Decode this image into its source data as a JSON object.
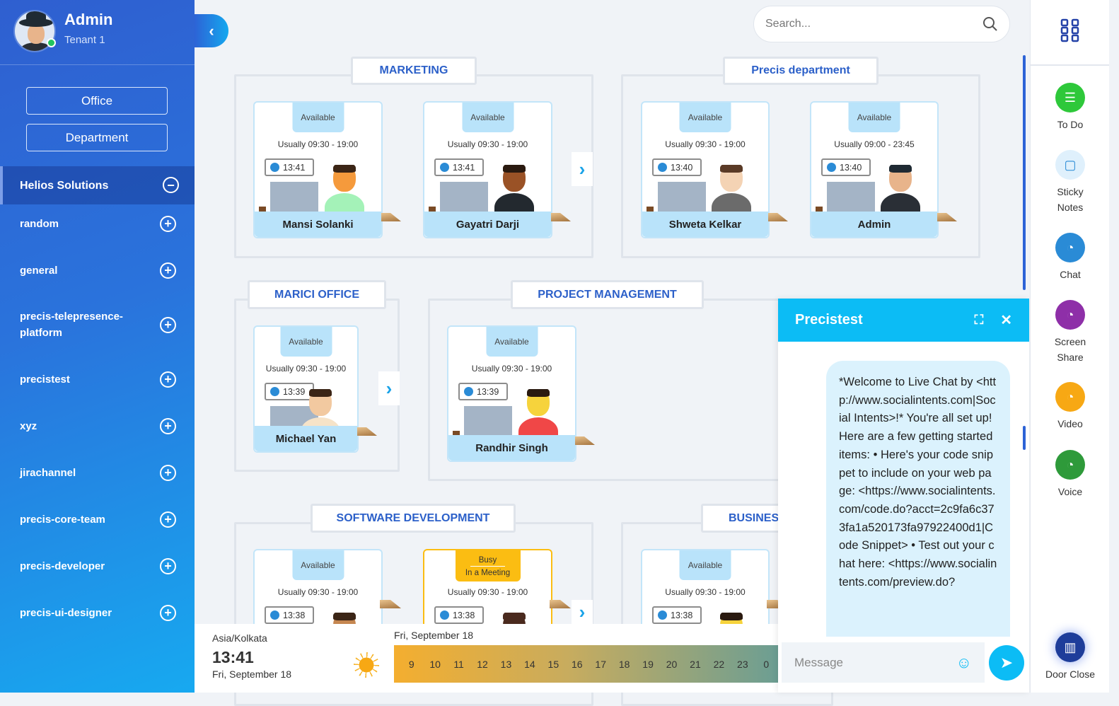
{
  "user": {
    "name": "Admin",
    "tenant": "Tenant 1",
    "status_color": "#22c55e"
  },
  "sidebar": {
    "office_label": "Office",
    "department_label": "Department",
    "active_item": "Helios Solutions",
    "items": [
      {
        "label": "random"
      },
      {
        "label": "general"
      },
      {
        "label": "precis-telepresence-platform"
      },
      {
        "label": "precistest"
      },
      {
        "label": "xyz"
      },
      {
        "label": "jirachannel"
      },
      {
        "label": "precis-core-team"
      },
      {
        "label": "precis-developer"
      },
      {
        "label": "precis-ui-designer"
      }
    ]
  },
  "search": {
    "placeholder": "Search..."
  },
  "groups": [
    {
      "title": "MARKETING",
      "members": [
        {
          "name": "Mansi Solanki",
          "status": "Available",
          "hours": "Usually 09:30 - 19:00",
          "time": "13:41",
          "skin": "#f59a3c",
          "hair": "#3b2516",
          "shirt": "#a4f2b8"
        },
        {
          "name": "Gayatri Darji",
          "status": "Available",
          "hours": "Usually 09:30 - 19:00",
          "time": "13:41",
          "skin": "#9a5226",
          "hair": "#2a1a10",
          "shirt": "#23292f"
        }
      ]
    },
    {
      "title": "Precis department",
      "members": [
        {
          "name": "Shweta Kelkar",
          "status": "Available",
          "hours": "Usually 09:30 - 19:00",
          "time": "13:40",
          "skin": "#f4d3b4",
          "hair": "#5a3a26",
          "shirt": "#6b6b6b"
        },
        {
          "name": "Admin",
          "status": "Available",
          "hours": "Usually 09:00 - 23:45",
          "time": "13:40",
          "skin": "#e8b48b",
          "hair": "#1f2a33",
          "shirt": "#2a2f36"
        }
      ]
    },
    {
      "title": "MARICI OFFICE",
      "members": [
        {
          "name": "Michael Yan",
          "status": "Available",
          "hours": "Usually 09:30 - 19:00",
          "time": "13:39",
          "skin": "#f2c9a0",
          "hair": "#3b2516",
          "shirt": "#f6e3c8"
        }
      ]
    },
    {
      "title": "PROJECT MANAGEMENT",
      "members": [
        {
          "name": "Randhir Singh",
          "status": "Available",
          "hours": "Usually 09:30 - 19:00",
          "time": "13:39",
          "skin": "#f6d33c",
          "hair": "#2a1a10",
          "shirt": "#f04747"
        }
      ]
    },
    {
      "title": "SOFTWARE DEVELOPMENT",
      "members": [
        {
          "name": "",
          "status": "Available",
          "hours": "Usually 09:30 - 19:00",
          "time": "13:38",
          "skin": "#c58650",
          "hair": "#3b2516",
          "shirt": "#888"
        },
        {
          "name": "",
          "status": "Busy",
          "substatus": "In a Meeting",
          "hours": "Usually 09:30 - 19:00",
          "time": "13:38",
          "skin": "#4a2a1e",
          "hair": "#4a2a1e",
          "shirt": "#888"
        }
      ]
    },
    {
      "title": "BUSINES",
      "members": [
        {
          "name": "",
          "status": "Available",
          "hours": "Usually 09:30 - 19:00",
          "time": "13:38",
          "skin": "#f6d33c",
          "hair": "#2a1a10",
          "shirt": "#888"
        }
      ]
    }
  ],
  "clock": {
    "timezone": "Asia/Kolkata",
    "time": "13:41",
    "date": "Fri, September 18",
    "timeline_date": "Fri, September 18",
    "hours": [
      "9",
      "10",
      "11",
      "12",
      "13",
      "14",
      "15",
      "16",
      "17",
      "18",
      "19",
      "20",
      "21",
      "22",
      "23",
      "0"
    ]
  },
  "chat": {
    "title": "Precistest",
    "message": "*Welcome to Live Chat by <http://www.socialintents.com|Social Intents>!* You're all set up! Here are a few getting started items: • Here's your code snippet to include on your web page: <https://www.socialintents.com/code.do?acct=2c9fa6c373fa1a520173fa97922400d1|Code Snippet> • Test out your chat here: <https://www.socialintents.com/preview.do?",
    "input_placeholder": "Message",
    "accent": "#0cbcf5"
  },
  "rail": {
    "items": [
      {
        "label": "To Do",
        "icon": "todo-list-icon",
        "color": "#2ec83a"
      },
      {
        "label": "Sticky Notes",
        "icon": "sticky-note-icon",
        "color": "#dff0fc"
      },
      {
        "label": "Chat",
        "icon": "chat-headset-icon",
        "color": "#2a8bd6"
      },
      {
        "label": "Screen Share",
        "icon": "screen-share-icon",
        "color": "#8e2fa8"
      },
      {
        "label": "Video",
        "icon": "video-icon",
        "color": "#f7a814"
      },
      {
        "label": "Voice",
        "icon": "voice-icon",
        "color": "#2e9a3a"
      }
    ],
    "door": {
      "label": "Door Close",
      "icon": "door-icon",
      "color": "#1e3d9a"
    }
  }
}
